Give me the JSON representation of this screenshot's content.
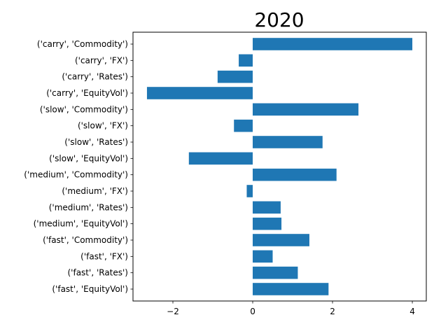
{
  "chart_data": {
    "type": "bar",
    "orientation": "horizontal",
    "title": "2020",
    "xlabel": "",
    "ylabel": "",
    "categories": [
      "('carry', 'Commodity')",
      "('carry', 'FX')",
      "('carry', 'Rates')",
      "('carry', 'EquityVol')",
      "('slow', 'Commodity')",
      "('slow', 'FX')",
      "('slow', 'Rates')",
      "('slow', 'EquityVol')",
      "('medium', 'Commodity')",
      "('medium', 'FX')",
      "('medium', 'Rates')",
      "('medium', 'EquityVol')",
      "('fast', 'Commodity')",
      "('fast', 'FX')",
      "('fast', 'Rates')",
      "('fast', 'EquityVol')"
    ],
    "values": [
      4.0,
      -0.35,
      -0.88,
      -2.65,
      2.65,
      -0.47,
      1.75,
      -1.6,
      2.1,
      -0.15,
      0.7,
      0.72,
      1.42,
      0.5,
      1.13,
      1.9
    ],
    "xlim": [
      -3.0,
      4.35
    ],
    "xticks": [
      -2,
      0,
      2,
      4
    ],
    "xtick_labels": [
      "−2",
      "0",
      "2",
      "4"
    ],
    "bar_color": "#1f77b4",
    "grid": false
  }
}
